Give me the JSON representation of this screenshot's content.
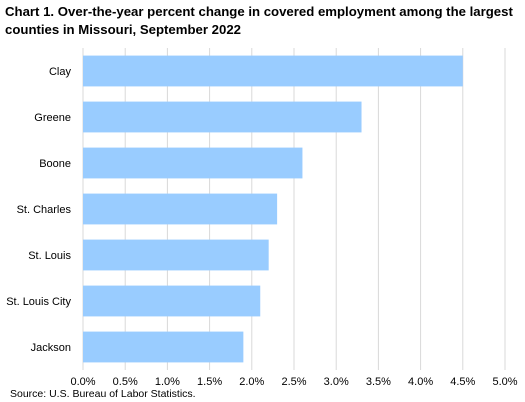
{
  "title": "Chart 1.  Over-the-year percent change in covered employment among the largest counties in Missouri, September 2022",
  "source": "Source: U.S. Bureau of Labor Statistics.",
  "chart_data": {
    "type": "bar",
    "orientation": "horizontal",
    "categories": [
      "Clay",
      "Greene",
      "Boone",
      "St. Charles",
      "St. Louis",
      "St. Louis City",
      "Jackson"
    ],
    "values": [
      4.5,
      3.3,
      2.6,
      2.3,
      2.2,
      2.1,
      1.9
    ],
    "xlim": [
      0,
      5.0
    ],
    "xticks": [
      "0.0%",
      "0.5%",
      "1.0%",
      "1.5%",
      "2.0%",
      "2.5%",
      "3.0%",
      "3.5%",
      "4.0%",
      "4.5%",
      "5.0%"
    ],
    "grid": "vertical",
    "bar_color": "#99ccff",
    "grid_color": "#d9d9d9",
    "legend": "none"
  }
}
